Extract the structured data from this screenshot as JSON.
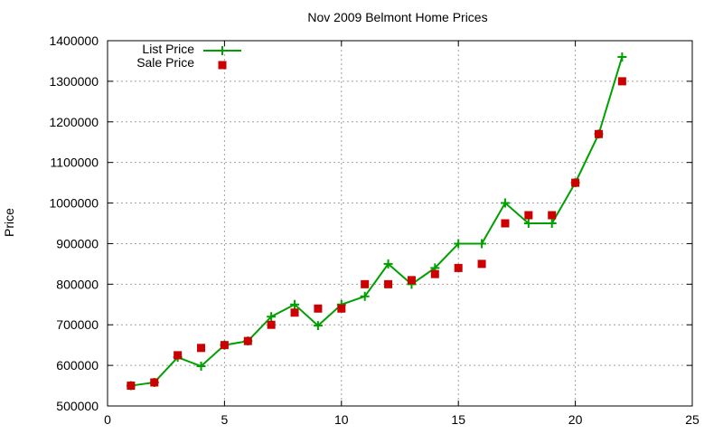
{
  "chart_data": {
    "type": "line",
    "title": "Nov 2009 Belmont Home Prices",
    "xlabel": "",
    "ylabel": "Price",
    "xlim": [
      0,
      25
    ],
    "ylim": [
      500000,
      1400000
    ],
    "xticks": [
      0,
      5,
      10,
      15,
      20,
      25
    ],
    "yticks": [
      500000,
      600000,
      700000,
      800000,
      900000,
      1000000,
      1100000,
      1200000,
      1300000,
      1400000
    ],
    "grid": true,
    "legend_position": "top-left",
    "x": [
      1,
      2,
      3,
      4,
      5,
      6,
      7,
      8,
      9,
      10,
      11,
      12,
      13,
      14,
      15,
      16,
      17,
      18,
      19,
      20,
      21,
      22
    ],
    "series": [
      {
        "name": "List Price",
        "style": "line+cross",
        "color": "#00a000",
        "values": [
          550000,
          558000,
          620000,
          598000,
          650000,
          660000,
          720000,
          750000,
          698000,
          750000,
          770000,
          850000,
          800000,
          840000,
          900000,
          900000,
          1000000,
          950000,
          950000,
          1050000,
          1170000,
          1360000
        ]
      },
      {
        "name": "Sale Price",
        "style": "square-points",
        "color": "#cc0000",
        "values": [
          550000,
          558000,
          625000,
          643000,
          650000,
          660000,
          700000,
          730000,
          740000,
          740000,
          800000,
          800000,
          810000,
          825000,
          840000,
          850000,
          950000,
          970000,
          970000,
          1050000,
          1170000,
          1300000
        ]
      }
    ]
  },
  "legend": {
    "list_label": "List Price",
    "sale_label": "Sale Price"
  },
  "colors": {
    "list": "#00a000",
    "sale": "#cc0000",
    "grid": "#a0a0a0",
    "axis": "#000000"
  }
}
